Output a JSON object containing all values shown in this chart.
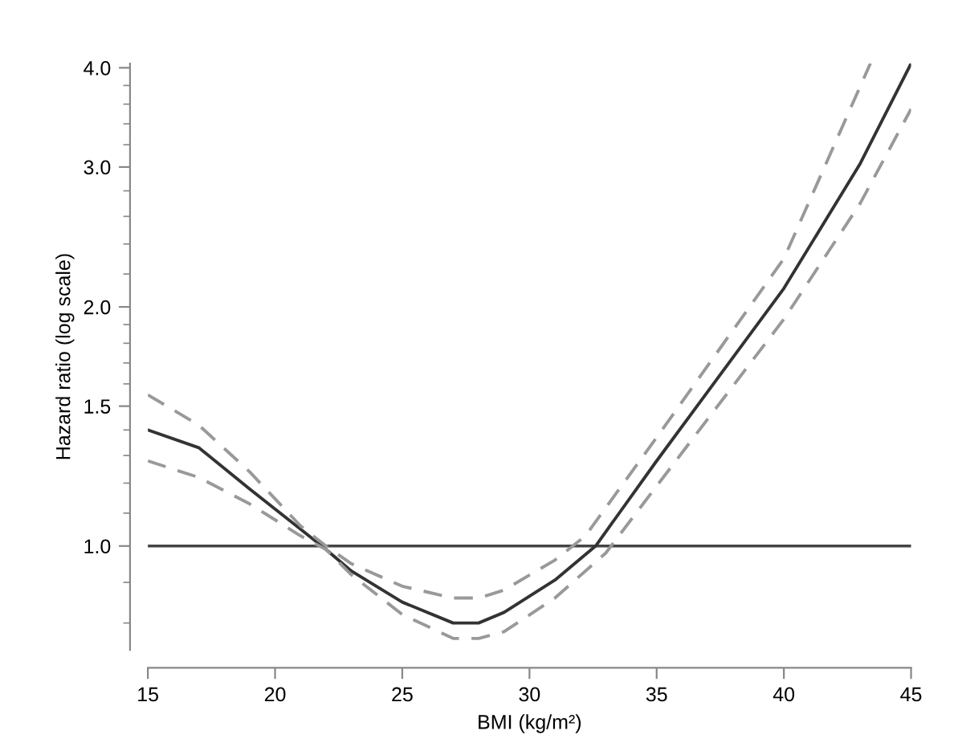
{
  "chart_data": {
    "type": "line",
    "xlabel": "BMI (kg/m²)",
    "ylabel": "Hazard ratio (log scale)",
    "log": "y",
    "grid": false,
    "xlim": [
      15,
      45
    ],
    "xticks": [
      15,
      20,
      25,
      30,
      35,
      40,
      45
    ],
    "ylim": [
      0.74,
      4.05
    ],
    "yticks": [
      {
        "value": 0.8,
        "label": null
      },
      {
        "value": 0.9,
        "label": null
      },
      {
        "value": 1,
        "label": "1.0"
      },
      {
        "value": 1.1,
        "label": null
      },
      {
        "value": 1.2,
        "label": null
      },
      {
        "value": 1.3,
        "label": null
      },
      {
        "value": 1.4,
        "label": null
      },
      {
        "value": 1.5,
        "label": "1.5"
      },
      {
        "value": 1.6,
        "label": null
      },
      {
        "value": 1.7,
        "label": null
      },
      {
        "value": 1.8,
        "label": null
      },
      {
        "value": 1.9,
        "label": null
      },
      {
        "value": 2,
        "label": "2.0"
      },
      {
        "value": 2.2,
        "label": null
      },
      {
        "value": 2.4,
        "label": null
      },
      {
        "value": 2.6,
        "label": null
      },
      {
        "value": 2.8,
        "label": null
      },
      {
        "value": 3,
        "label": "3.0"
      },
      {
        "value": 3.2,
        "label": null
      },
      {
        "value": 3.4,
        "label": null
      },
      {
        "value": 3.6,
        "label": null
      },
      {
        "value": 3.8,
        "label": null
      },
      {
        "value": 4,
        "label": "4.0"
      }
    ],
    "ref_lines": [
      {
        "axis": "y",
        "value": 1,
        "label": null,
        "color": "#444444"
      }
    ],
    "series": [
      {
        "color": "#333333",
        "line_style": "solid",
        "x": [
          15,
          17,
          19,
          21,
          22,
          23,
          25,
          27,
          28,
          29,
          31,
          32.6,
          35,
          40,
          43,
          45
        ],
        "values": [
          1.4,
          1.33,
          1.18,
          1.05,
          0.99,
          0.93,
          0.85,
          0.8,
          0.8,
          0.825,
          0.906,
          1.0,
          1.28,
          2.11,
          3.03,
          4.05
        ]
      },
      {
        "color": "#999999",
        "line_style": "dashed",
        "x": [
          15,
          17,
          19,
          21,
          22,
          23,
          25,
          27,
          28,
          29,
          31,
          32.2,
          35,
          40,
          43.4
        ],
        "values": [
          1.55,
          1.42,
          1.24,
          1.06,
          1.0,
          0.95,
          0.89,
          0.86,
          0.86,
          0.88,
          0.96,
          1.03,
          1.37,
          2.3,
          4.05
        ]
      },
      {
        "color": "#999999",
        "line_style": "dashed",
        "x": [
          15,
          17,
          19,
          21,
          22,
          23,
          25,
          27,
          28,
          29,
          31,
          33,
          35,
          40,
          43,
          45
        ],
        "values": [
          1.28,
          1.22,
          1.13,
          1.03,
          0.99,
          0.92,
          0.82,
          0.765,
          0.765,
          0.78,
          0.86,
          0.98,
          1.19,
          1.93,
          2.7,
          3.55
        ]
      }
    ]
  }
}
